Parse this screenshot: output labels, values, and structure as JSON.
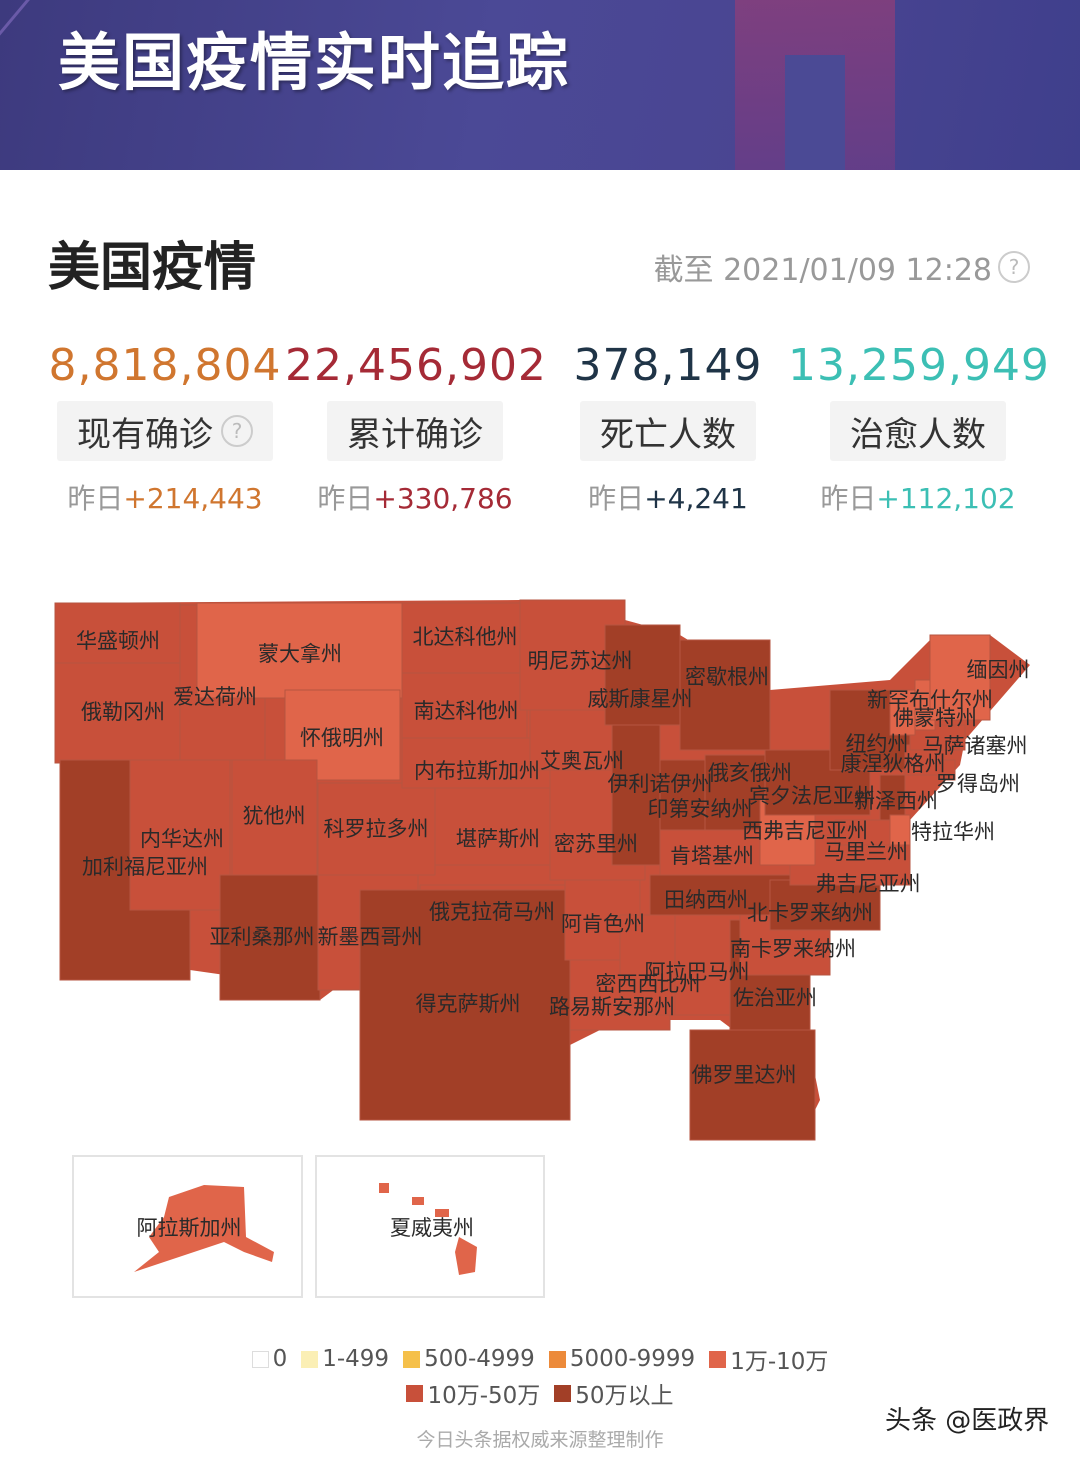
{
  "banner": {
    "title": "美国疫情实时追踪"
  },
  "section": {
    "title": "美国疫情",
    "as_of": "截至 2021/01/09 12:28"
  },
  "stats": [
    {
      "value": "8,818,804",
      "label": "现有确诊",
      "delta_prefix": "昨日",
      "delta": "+214,443",
      "color": "#d0762f",
      "has_help": true
    },
    {
      "value": "22,456,902",
      "label": "累计确诊",
      "delta_prefix": "昨日",
      "delta": "+330,786",
      "color": "#a52a36",
      "has_help": false
    },
    {
      "value": "378,149",
      "label": "死亡人数",
      "delta_prefix": "昨日",
      "delta": "+4,241",
      "color": "#1f3447",
      "has_help": false
    },
    {
      "value": "13,259,949",
      "label": "治愈人数",
      "delta_prefix": "昨日",
      "delta": "+112,102",
      "color": "#3cbfb4",
      "has_help": false
    }
  ],
  "legend": [
    {
      "label": "0",
      "color": "#ffffff"
    },
    {
      "label": "1-499",
      "color": "#fbefb5"
    },
    {
      "label": "500-4999",
      "color": "#f5c04a"
    },
    {
      "label": "5000-9999",
      "color": "#ec8a3a"
    },
    {
      "label": "1万-10万",
      "color": "#e0654a"
    },
    {
      "label": "10万-50万",
      "color": "#c8503a"
    },
    {
      "label": "50万以上",
      "color": "#a23f27"
    }
  ],
  "states": [
    {
      "name": "华盛顿州",
      "level": 5
    },
    {
      "name": "俄勒冈州",
      "level": 5
    },
    {
      "name": "加利福尼亚州",
      "level": 6
    },
    {
      "name": "爱达荷州",
      "level": 5
    },
    {
      "name": "内华达州",
      "level": 5
    },
    {
      "name": "蒙大拿州",
      "level": 4
    },
    {
      "name": "怀俄明州",
      "level": 4
    },
    {
      "name": "犹他州",
      "level": 5
    },
    {
      "name": "亚利桑那州",
      "level": 6
    },
    {
      "name": "科罗拉多州",
      "level": 5
    },
    {
      "name": "新墨西哥州",
      "level": 5
    },
    {
      "name": "北达科他州",
      "level": 5
    },
    {
      "name": "南达科他州",
      "level": 5
    },
    {
      "name": "内布拉斯加州",
      "level": 5
    },
    {
      "name": "堪萨斯州",
      "level": 5
    },
    {
      "name": "俄克拉荷马州",
      "level": 5
    },
    {
      "name": "得克萨斯州",
      "level": 6
    },
    {
      "name": "明尼苏达州",
      "level": 5
    },
    {
      "name": "艾奥瓦州",
      "level": 5
    },
    {
      "name": "密苏里州",
      "level": 5
    },
    {
      "name": "阿肯色州",
      "level": 5
    },
    {
      "name": "路易斯安那州",
      "level": 5
    },
    {
      "name": "威斯康星州",
      "level": 6
    },
    {
      "name": "密歇根州",
      "level": 6
    },
    {
      "name": "伊利诺伊州",
      "level": 6
    },
    {
      "name": "印第安纳州",
      "level": 6
    },
    {
      "name": "俄亥俄州",
      "level": 6
    },
    {
      "name": "肯塔基州",
      "level": 5
    },
    {
      "name": "田纳西州",
      "level": 6
    },
    {
      "name": "密西西比州",
      "level": 5
    },
    {
      "name": "阿拉巴马州",
      "level": 5
    },
    {
      "name": "佐治亚州",
      "level": 6
    },
    {
      "name": "佛罗里达州",
      "level": 6
    },
    {
      "name": "南卡罗来纳州",
      "level": 5
    },
    {
      "name": "北卡罗来纳州",
      "level": 6
    },
    {
      "name": "弗吉尼亚州",
      "level": 5
    },
    {
      "name": "西弗吉尼亚州",
      "level": 4
    },
    {
      "name": "宾夕法尼亚州",
      "level": 6
    },
    {
      "name": "纽约州",
      "level": 6
    },
    {
      "name": "新泽西州",
      "level": 6
    },
    {
      "name": "马里兰州",
      "level": 5
    },
    {
      "name": "特拉华州",
      "level": 4
    },
    {
      "name": "康涅狄格州",
      "level": 5
    },
    {
      "name": "罗得岛州",
      "level": 5
    },
    {
      "name": "马萨诸塞州",
      "level": 5
    },
    {
      "name": "佛蒙特州",
      "level": 4
    },
    {
      "name": "新罕布什尔州",
      "level": 4
    },
    {
      "name": "缅因州",
      "level": 4
    }
  ],
  "insets": [
    {
      "name": "阿拉斯加州",
      "level": 4
    },
    {
      "name": "夏威夷州",
      "level": 4
    }
  ],
  "footer": {
    "source": "今日头条据权威来源整理制作",
    "watermark": "头条 @医政界"
  }
}
